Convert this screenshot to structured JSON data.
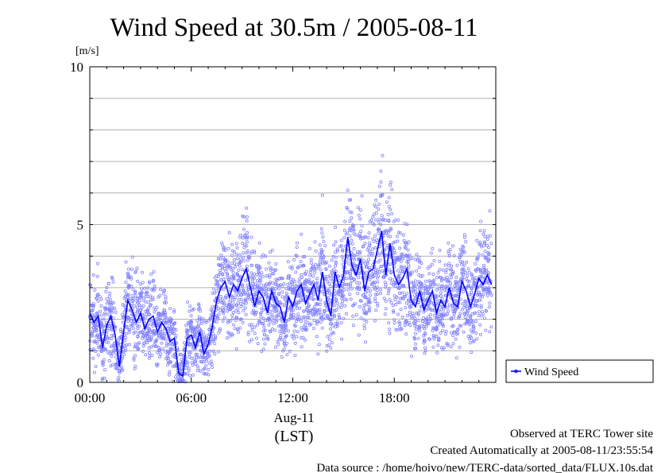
{
  "chart_data": {
    "type": "line",
    "title": "Wind Speed at 30.5m / 2005-08-11",
    "ylabel": "[m/s]",
    "ylim": [
      0,
      10
    ],
    "yticks": [
      0,
      5,
      10
    ],
    "xlim": [
      0,
      24
    ],
    "xticks": [
      "00:00",
      "06:00",
      "12:00",
      "18:00"
    ],
    "xlabel_date": "Aug-11",
    "xlabel_tz": "(LST)",
    "grid": true,
    "legend_position": "right",
    "series": [
      {
        "name": "Wind Speed",
        "color": "#0000ff",
        "scatter_color": "#8080ff",
        "x": [
          0.0,
          0.25,
          0.5,
          0.75,
          1.0,
          1.25,
          1.5,
          1.75,
          2.0,
          2.25,
          2.5,
          2.75,
          3.0,
          3.25,
          3.5,
          3.75,
          4.0,
          4.25,
          4.5,
          4.75,
          5.0,
          5.25,
          5.5,
          5.75,
          6.0,
          6.25,
          6.5,
          6.75,
          7.0,
          7.25,
          7.5,
          7.75,
          8.0,
          8.25,
          8.5,
          8.75,
          9.0,
          9.25,
          9.5,
          9.75,
          10.0,
          10.25,
          10.5,
          10.75,
          11.0,
          11.25,
          11.5,
          11.75,
          12.0,
          12.25,
          12.5,
          12.75,
          13.0,
          13.25,
          13.5,
          13.75,
          14.0,
          14.25,
          14.5,
          14.75,
          15.0,
          15.25,
          15.5,
          15.75,
          16.0,
          16.25,
          16.5,
          16.75,
          17.0,
          17.25,
          17.5,
          17.75,
          18.0,
          18.25,
          18.5,
          18.75,
          19.0,
          19.25,
          19.5,
          19.75,
          20.0,
          20.25,
          20.5,
          20.75,
          21.0,
          21.25,
          21.5,
          21.75,
          22.0,
          22.25,
          22.5,
          22.75,
          23.0,
          23.25,
          23.5,
          23.75
        ],
        "y": [
          2.2,
          1.9,
          2.1,
          1.1,
          1.8,
          2.1,
          1.5,
          0.5,
          1.6,
          2.6,
          2.3,
          1.9,
          2.2,
          1.7,
          2.0,
          2.1,
          1.6,
          1.9,
          1.7,
          1.3,
          1.4,
          0.3,
          0.2,
          1.4,
          1.5,
          1.1,
          1.6,
          0.9,
          1.2,
          1.8,
          2.6,
          3.0,
          3.2,
          2.7,
          3.1,
          2.9,
          3.3,
          3.6,
          3.0,
          2.4,
          2.9,
          2.7,
          2.2,
          2.9,
          2.5,
          2.4,
          1.9,
          2.7,
          2.4,
          2.9,
          3.1,
          2.5,
          2.8,
          3.1,
          2.6,
          3.5,
          2.6,
          2.1,
          3.5,
          3.0,
          3.4,
          4.6,
          3.7,
          3.4,
          3.9,
          2.9,
          3.5,
          3.6,
          4.2,
          4.8,
          3.4,
          4.4,
          3.4,
          3.1,
          3.3,
          3.6,
          2.6,
          2.4,
          2.9,
          2.3,
          2.6,
          2.9,
          2.2,
          2.6,
          2.4,
          3.0,
          2.5,
          2.4,
          3.2,
          2.9,
          2.4,
          2.8,
          3.3,
          3.1,
          3.4,
          3.1
        ]
      }
    ]
  },
  "footer": {
    "line1": "Observed at TERC Tower site",
    "line2": "Created Automatically at 2005-08-11/23:55:54",
    "line3": "Data source : /home/hoivo/new/TERC-data/sorted_data/FLUX.10s.dat"
  }
}
